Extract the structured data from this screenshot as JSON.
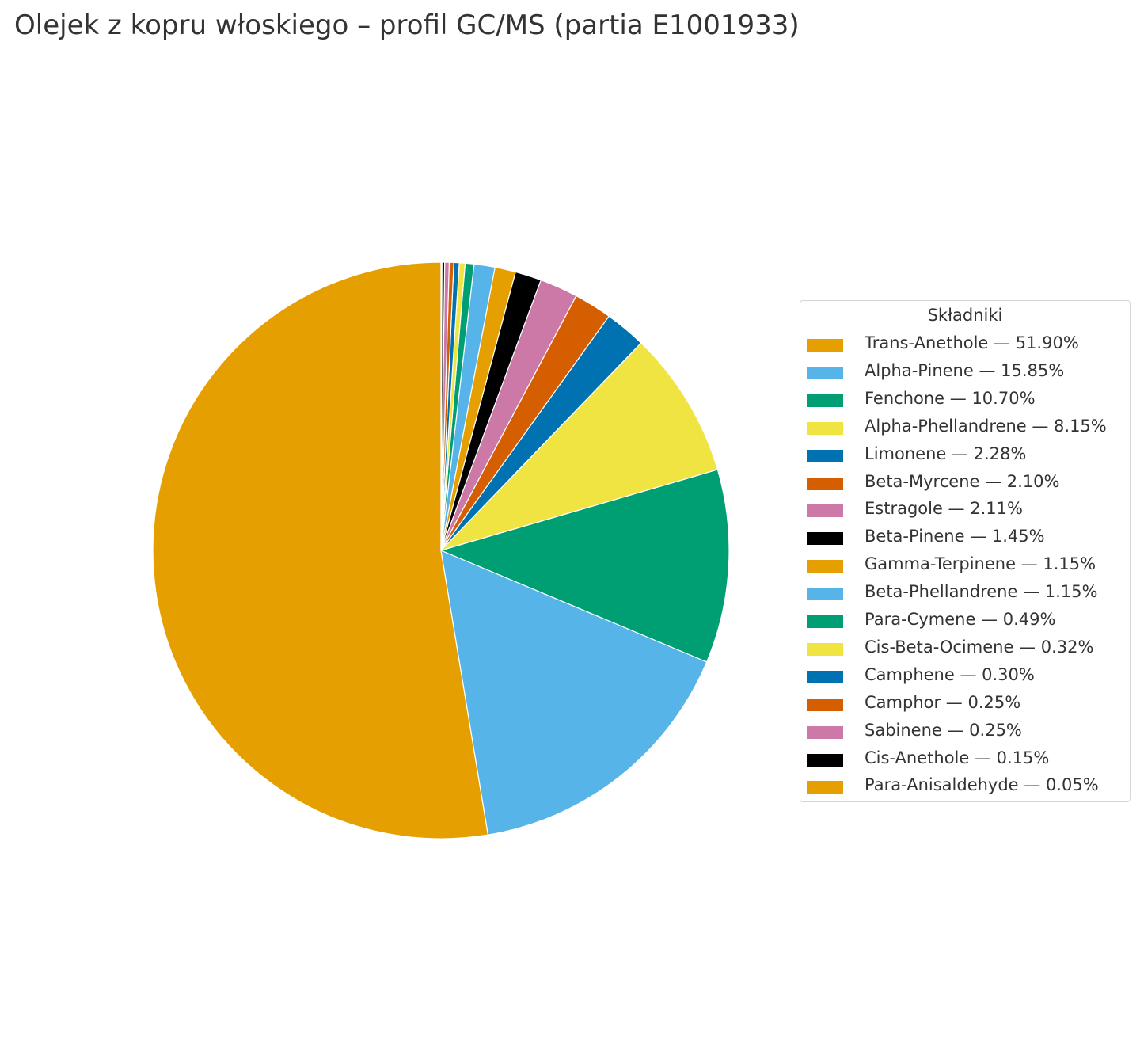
{
  "title": "Olejek z kopru włoskiego – profil GC/MS (partia E1001933)",
  "chart_data": {
    "type": "pie",
    "title": "Olejek z kopru włoskiego – profil GC/MS (partia E1001933)",
    "start_angle": "top",
    "direction": "counterclockwise",
    "legend_title": "Składniki",
    "legend_position": "right",
    "slices": [
      {
        "name": "Trans-Anethole",
        "value": 51.9,
        "label": "Trans-Anethole — 51.90%",
        "color": "#E69F00"
      },
      {
        "name": "Alpha-Pinene",
        "value": 15.85,
        "label": "Alpha-Pinene — 15.85%",
        "color": "#56B4E9"
      },
      {
        "name": "Fenchone",
        "value": 10.7,
        "label": "Fenchone — 10.70%",
        "color": "#009E73"
      },
      {
        "name": "Alpha-Phellandrene",
        "value": 8.15,
        "label": "Alpha-Phellandrene — 8.15%",
        "color": "#F0E442"
      },
      {
        "name": "Limonene",
        "value": 2.28,
        "label": "Limonene — 2.28%",
        "color": "#0072B2"
      },
      {
        "name": "Beta-Myrcene",
        "value": 2.1,
        "label": "Beta-Myrcene — 2.10%",
        "color": "#D55E00"
      },
      {
        "name": "Estragole",
        "value": 2.11,
        "label": "Estragole — 2.11%",
        "color": "#CC79A7"
      },
      {
        "name": "Beta-Pinene",
        "value": 1.45,
        "label": "Beta-Pinene — 1.45%",
        "color": "#000000"
      },
      {
        "name": "Gamma-Terpinene",
        "value": 1.15,
        "label": "Gamma-Terpinene — 1.15%",
        "color": "#E69F00"
      },
      {
        "name": "Beta-Phellandrene",
        "value": 1.15,
        "label": "Beta-Phellandrene — 1.15%",
        "color": "#56B4E9"
      },
      {
        "name": "Para-Cymene",
        "value": 0.49,
        "label": "Para-Cymene — 0.49%",
        "color": "#009E73"
      },
      {
        "name": "Cis-Beta-Ocimene",
        "value": 0.32,
        "label": "Cis-Beta-Ocimene — 0.32%",
        "color": "#F0E442"
      },
      {
        "name": "Camphene",
        "value": 0.3,
        "label": "Camphene — 0.30%",
        "color": "#0072B2"
      },
      {
        "name": "Camphor",
        "value": 0.25,
        "label": "Camphor — 0.25%",
        "color": "#D55E00"
      },
      {
        "name": "Sabinene",
        "value": 0.25,
        "label": "Sabinene — 0.25%",
        "color": "#CC79A7"
      },
      {
        "name": "Cis-Anethole",
        "value": 0.15,
        "label": "Cis-Anethole — 0.15%",
        "color": "#000000"
      },
      {
        "name": "Para-Anisaldehyde",
        "value": 0.05,
        "label": "Para-Anisaldehyde — 0.05%",
        "color": "#E69F00"
      }
    ]
  }
}
